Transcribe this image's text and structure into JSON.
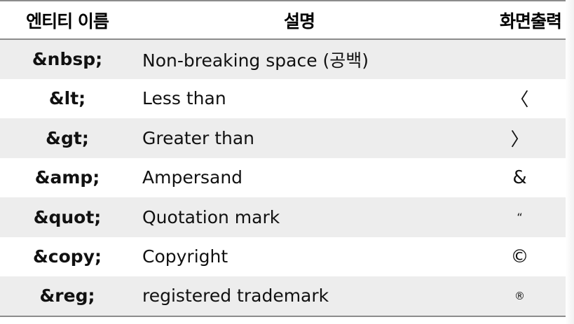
{
  "headers": {
    "entity": "엔티티 이름",
    "description": "설명",
    "output": "화면출력"
  },
  "rows": [
    {
      "entity": "&nbsp;",
      "description": "Non-breaking space (공백)",
      "output": ""
    },
    {
      "entity": "&lt;",
      "description": "Less than",
      "output": "〈"
    },
    {
      "entity": "&gt;",
      "description": "Greater than",
      "output": "〉"
    },
    {
      "entity": "&amp;",
      "description": "Ampersand",
      "output": "&"
    },
    {
      "entity": "&quot;",
      "description": "Quotation mark",
      "output": "“"
    },
    {
      "entity": "&copy;",
      "description": "Copyright",
      "output": "©"
    },
    {
      "entity": "&reg;",
      "description": "registered trademark",
      "output": "®"
    }
  ]
}
